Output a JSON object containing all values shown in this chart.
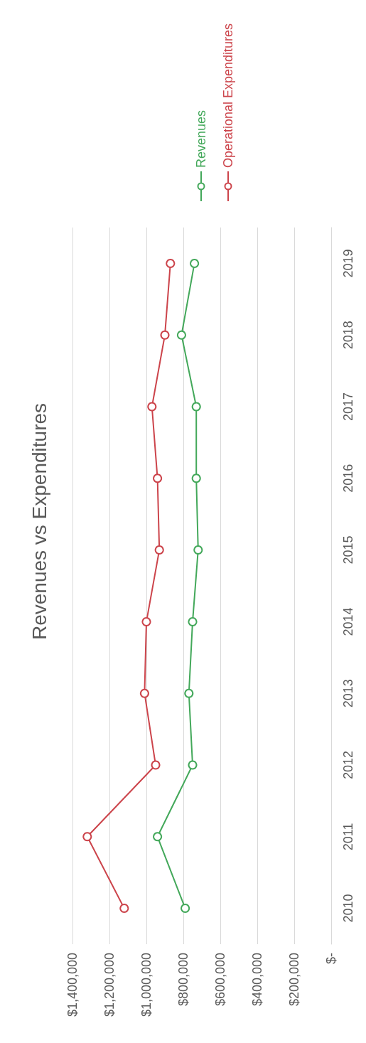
{
  "chart_data": {
    "type": "line",
    "title": "Revenues vs Expenditures",
    "orientation": "horizontal",
    "categories": [
      "2019",
      "2018",
      "2017",
      "2016",
      "2015",
      "2014",
      "2013",
      "2012",
      "2011",
      "2010"
    ],
    "series": [
      {
        "name": "Revenues",
        "color": "#43a85a",
        "values": [
          740000,
          810000,
          730000,
          730000,
          720000,
          750000,
          770000,
          750000,
          940000,
          790000
        ]
      },
      {
        "name": "Operational Expenditures",
        "color": "#cc444b",
        "values": [
          870000,
          900000,
          970000,
          940000,
          930000,
          1000000,
          1010000,
          950000,
          1320000,
          1120000
        ]
      }
    ],
    "xlim": [
      1400000,
      0
    ],
    "xticks": [
      {
        "value": 0,
        "label": "$-"
      },
      {
        "value": 200000,
        "label": "$200,000"
      },
      {
        "value": 400000,
        "label": "$400,000"
      },
      {
        "value": 600000,
        "label": "$600,000"
      },
      {
        "value": 800000,
        "label": "$800,000"
      },
      {
        "value": 1000000,
        "label": "$1,000,000"
      },
      {
        "value": 1200000,
        "label": "$1,200,000"
      },
      {
        "value": 1400000,
        "label": "$1,400,000"
      }
    ],
    "grid": "x",
    "legend": "top",
    "marker": "circle",
    "line_style": "solid"
  }
}
